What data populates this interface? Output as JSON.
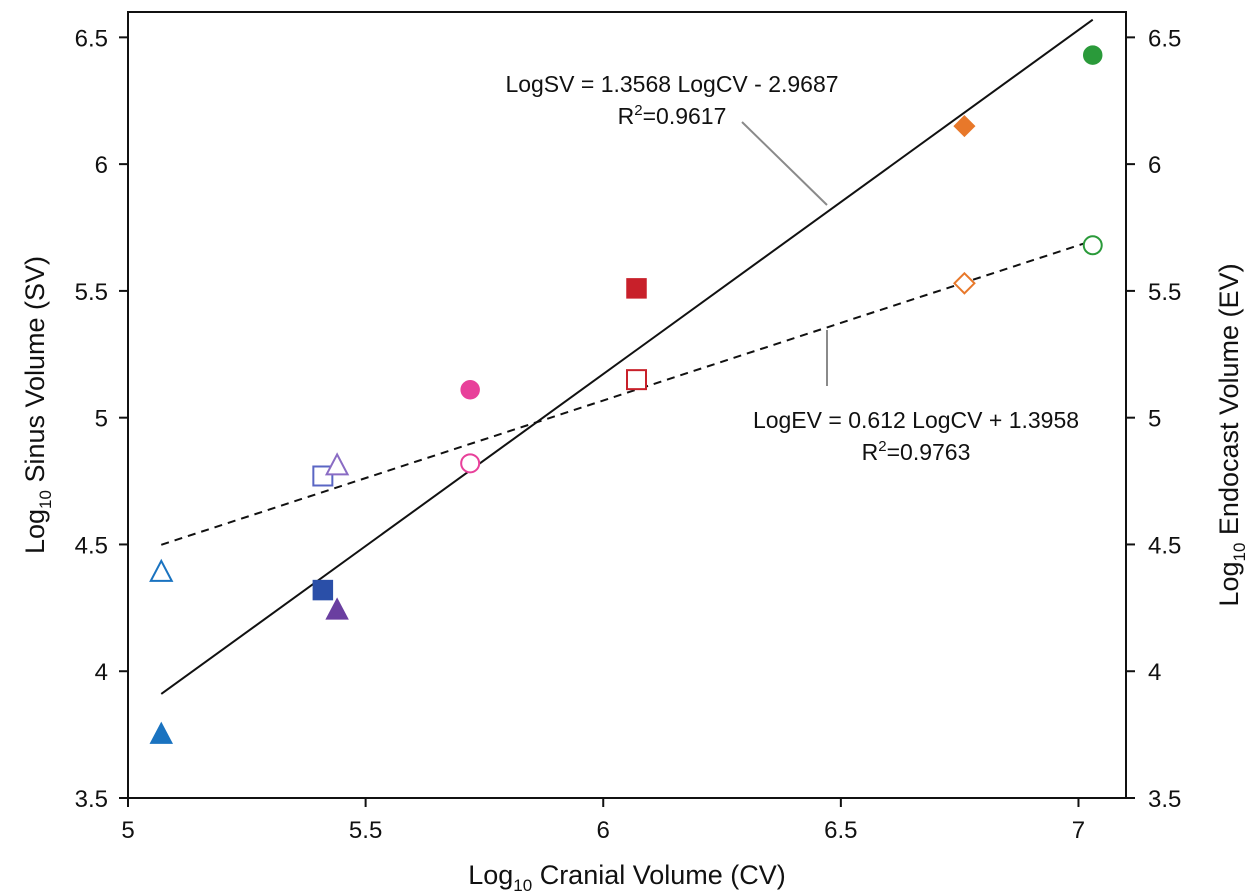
{
  "chart_data": {
    "type": "scatter",
    "title": "",
    "xlabel": {
      "prefix": "Log",
      "sub": "10",
      "rest": " Cranial Volume (CV)"
    },
    "ylabel": {
      "prefix": "Log",
      "sub": "10",
      "rest": " Sinus Volume (SV)"
    },
    "y2label": {
      "prefix": "Log",
      "sub": "10",
      "rest": " Endocast Volume (EV)"
    },
    "xlim": [
      5,
      7.1
    ],
    "ylim": [
      3.5,
      6.6
    ],
    "xticks": [
      "5",
      "5.5",
      "6",
      "6.5",
      "7"
    ],
    "yticks": [
      "3.5",
      "4",
      "4.5",
      "5",
      "5.5",
      "6",
      "6.5"
    ],
    "grid": false,
    "colors": {
      "blue": "#1a73c0",
      "navy": "#2a4fa8",
      "periwinkle": "#5a66c4",
      "purple": "#6a3fa0",
      "lavender": "#8a6cc4",
      "pink": "#e8409a",
      "red": "#c8202a",
      "orange": "#e8782a",
      "green": "#2a9a3a"
    },
    "points": [
      {
        "x": 5.07,
        "y": 3.75,
        "shape": "triangle",
        "filled": true,
        "color": "#1a73c0"
      },
      {
        "x": 5.07,
        "y": 4.39,
        "shape": "triangle",
        "filled": false,
        "color": "#1a73c0"
      },
      {
        "x": 5.41,
        "y": 4.32,
        "shape": "square",
        "filled": true,
        "color": "#2a4fa8"
      },
      {
        "x": 5.41,
        "y": 4.77,
        "shape": "square",
        "filled": false,
        "color": "#5a66c4"
      },
      {
        "x": 5.44,
        "y": 4.24,
        "shape": "triangle",
        "filled": true,
        "color": "#6a3fa0"
      },
      {
        "x": 5.44,
        "y": 4.81,
        "shape": "triangle",
        "filled": false,
        "color": "#8a6cc4"
      },
      {
        "x": 5.72,
        "y": 5.11,
        "shape": "circle",
        "filled": true,
        "color": "#e8409a"
      },
      {
        "x": 5.72,
        "y": 4.82,
        "shape": "circle",
        "filled": false,
        "color": "#e8409a"
      },
      {
        "x": 6.07,
        "y": 5.51,
        "shape": "square",
        "filled": true,
        "color": "#c8202a"
      },
      {
        "x": 6.07,
        "y": 5.15,
        "shape": "square",
        "filled": false,
        "color": "#c8202a"
      },
      {
        "x": 6.76,
        "y": 6.15,
        "shape": "diamond",
        "filled": true,
        "color": "#e8782a"
      },
      {
        "x": 6.76,
        "y": 5.53,
        "shape": "diamond",
        "filled": false,
        "color": "#e8782a"
      },
      {
        "x": 7.03,
        "y": 6.43,
        "shape": "circle",
        "filled": true,
        "color": "#2a9a3a"
      },
      {
        "x": 7.03,
        "y": 5.68,
        "shape": "circle",
        "filled": false,
        "color": "#2a9a3a"
      }
    ],
    "trendlines": [
      {
        "name": "LogSV",
        "slope": 1.3568,
        "intercept": -2.9687,
        "x_range": [
          5.07,
          7.03
        ],
        "style": "solid"
      },
      {
        "name": "LogEV",
        "slope": 0.612,
        "intercept": 1.3958,
        "x_range": [
          5.07,
          7.03
        ],
        "style": "dashed"
      }
    ],
    "annotations": {
      "sv_equation": "LogSV = 1.3568 LogCV - 2.9687",
      "sv_r2_prefix": "R",
      "sv_r2_sup": "2",
      "sv_r2_value": "=0.9617",
      "ev_equation": "LogEV = 0.612 LogCV + 1.3958",
      "ev_r2_prefix": "R",
      "ev_r2_sup": "2",
      "ev_r2_value": "=0.9763"
    }
  }
}
